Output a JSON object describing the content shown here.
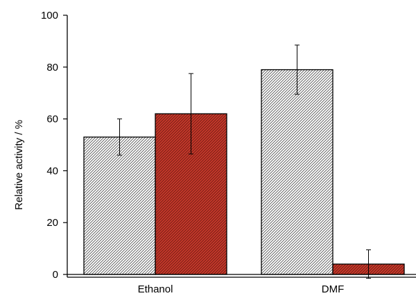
{
  "chart_data": {
    "type": "bar",
    "categories": [
      "Ethanol",
      "DMF"
    ],
    "series": [
      {
        "values": [
          53,
          79
        ],
        "errors": [
          7,
          9.5
        ],
        "fill": "#ffffff",
        "hatch": "#555555"
      },
      {
        "values": [
          62,
          4
        ],
        "errors": [
          15.5,
          5.5
        ],
        "fill": "#c8392b",
        "hatch": "#6b1a12"
      }
    ],
    "ylabel": "Relative activity / %",
    "xlabel": "",
    "ylim": [
      0,
      100
    ],
    "yticks": [
      0,
      20,
      40,
      60,
      80,
      100
    ],
    "grid": false,
    "legend": "none"
  }
}
